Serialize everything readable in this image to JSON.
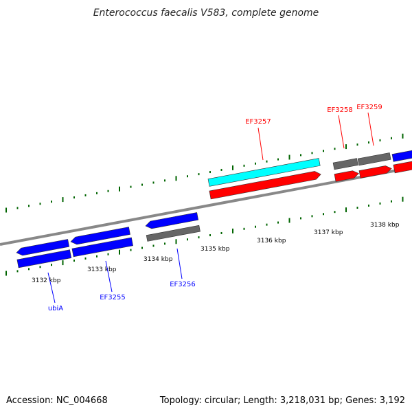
{
  "title": "Enterococcus faecalis V583, complete genome",
  "footer": {
    "accession": "Accession: NC_004668",
    "summary": "Topology: circular; Length: 3,218,031 bp; Genes: 3,192"
  },
  "colors": {
    "forward_gene": "#0000ff",
    "reverse_gene": "#ff0000",
    "highlight_gene": "#00ffff",
    "other_feature": "#666666",
    "tick": "#006400",
    "backbone": "#888888"
  },
  "scale": {
    "unit": "kbp",
    "labels": [
      "3132 kbp",
      "3133 kbp",
      "3134 kbp",
      "3135 kbp",
      "3136 kbp",
      "3137 kbp",
      "3138 kbp"
    ]
  },
  "gene_labels": [
    {
      "name": "ubiA",
      "strand": "forward"
    },
    {
      "name": "EF3255",
      "strand": "forward"
    },
    {
      "name": "EF3256",
      "strand": "forward"
    },
    {
      "name": "EF3257",
      "strand": "reverse"
    },
    {
      "name": "EF3258",
      "strand": "reverse"
    },
    {
      "name": "EF3259",
      "strand": "reverse"
    }
  ]
}
